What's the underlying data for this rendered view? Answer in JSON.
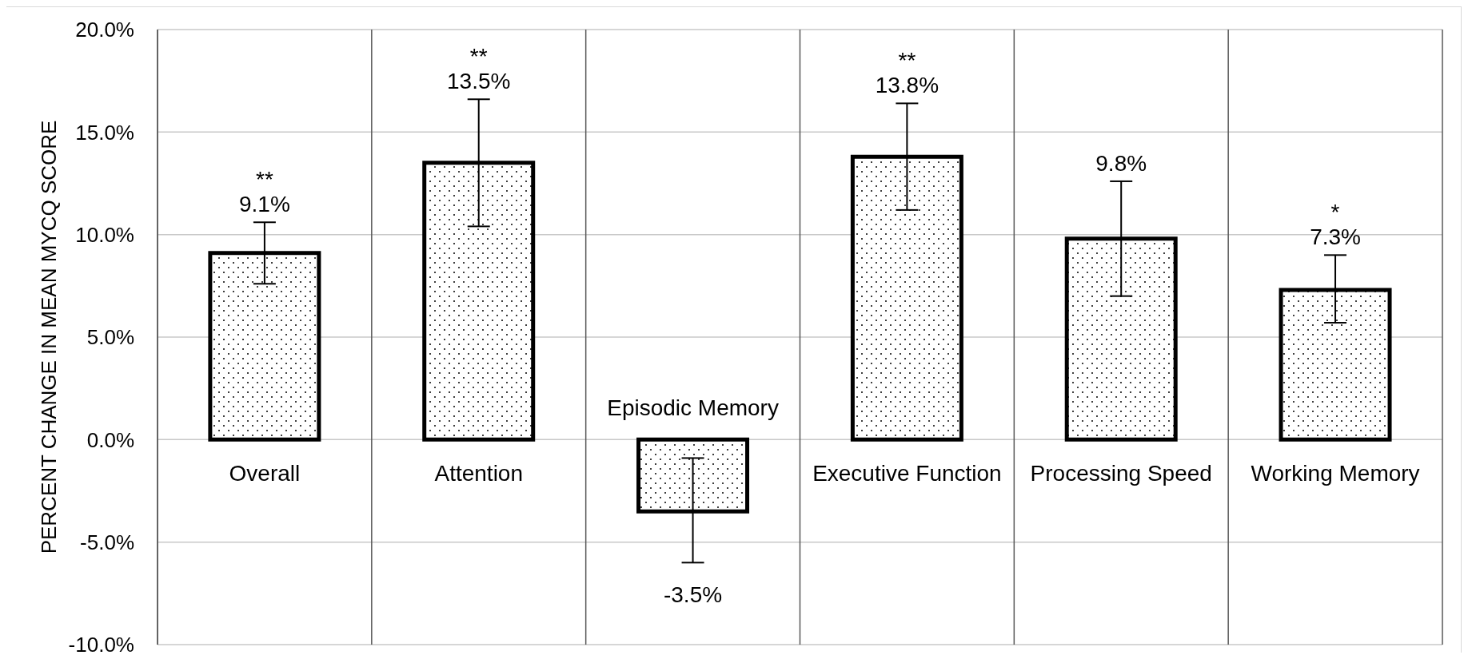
{
  "chart_data": {
    "type": "bar",
    "ylabel": "PERCENT CHANGE IN MEAN MYCQ SCORE",
    "categories": [
      "Overall",
      "Attention",
      "Episodic Memory",
      "Executive Function",
      "Processing Speed",
      "Working Memory"
    ],
    "values": [
      9.1,
      13.5,
      -3.5,
      13.8,
      9.8,
      7.3
    ],
    "color": "#000000",
    "errors": [
      [
        7.6,
        10.6
      ],
      [
        10.4,
        16.6
      ],
      [
        -6.0,
        -0.9
      ],
      [
        11.2,
        16.4
      ],
      [
        7.0,
        12.6
      ],
      [
        5.7,
        9.0
      ]
    ],
    "value_labels": [
      "**\n9.1%",
      "**\n13.5%",
      "-3.5%",
      "**\n13.8%",
      "9.8%",
      "*\n7.3%"
    ],
    "ylim": [
      -10,
      20
    ],
    "yticks": [
      {
        "value": -10,
        "label": "-10.0%"
      },
      {
        "value": -5,
        "label": "-5.0%"
      },
      {
        "value": 0,
        "label": "0.0%"
      },
      {
        "value": 5,
        "label": "5.0%"
      },
      {
        "value": 10,
        "label": "10.0%"
      },
      {
        "value": 15,
        "label": "15.0%"
      },
      {
        "value": 20,
        "label": "20.0%"
      }
    ],
    "grid": true
  }
}
